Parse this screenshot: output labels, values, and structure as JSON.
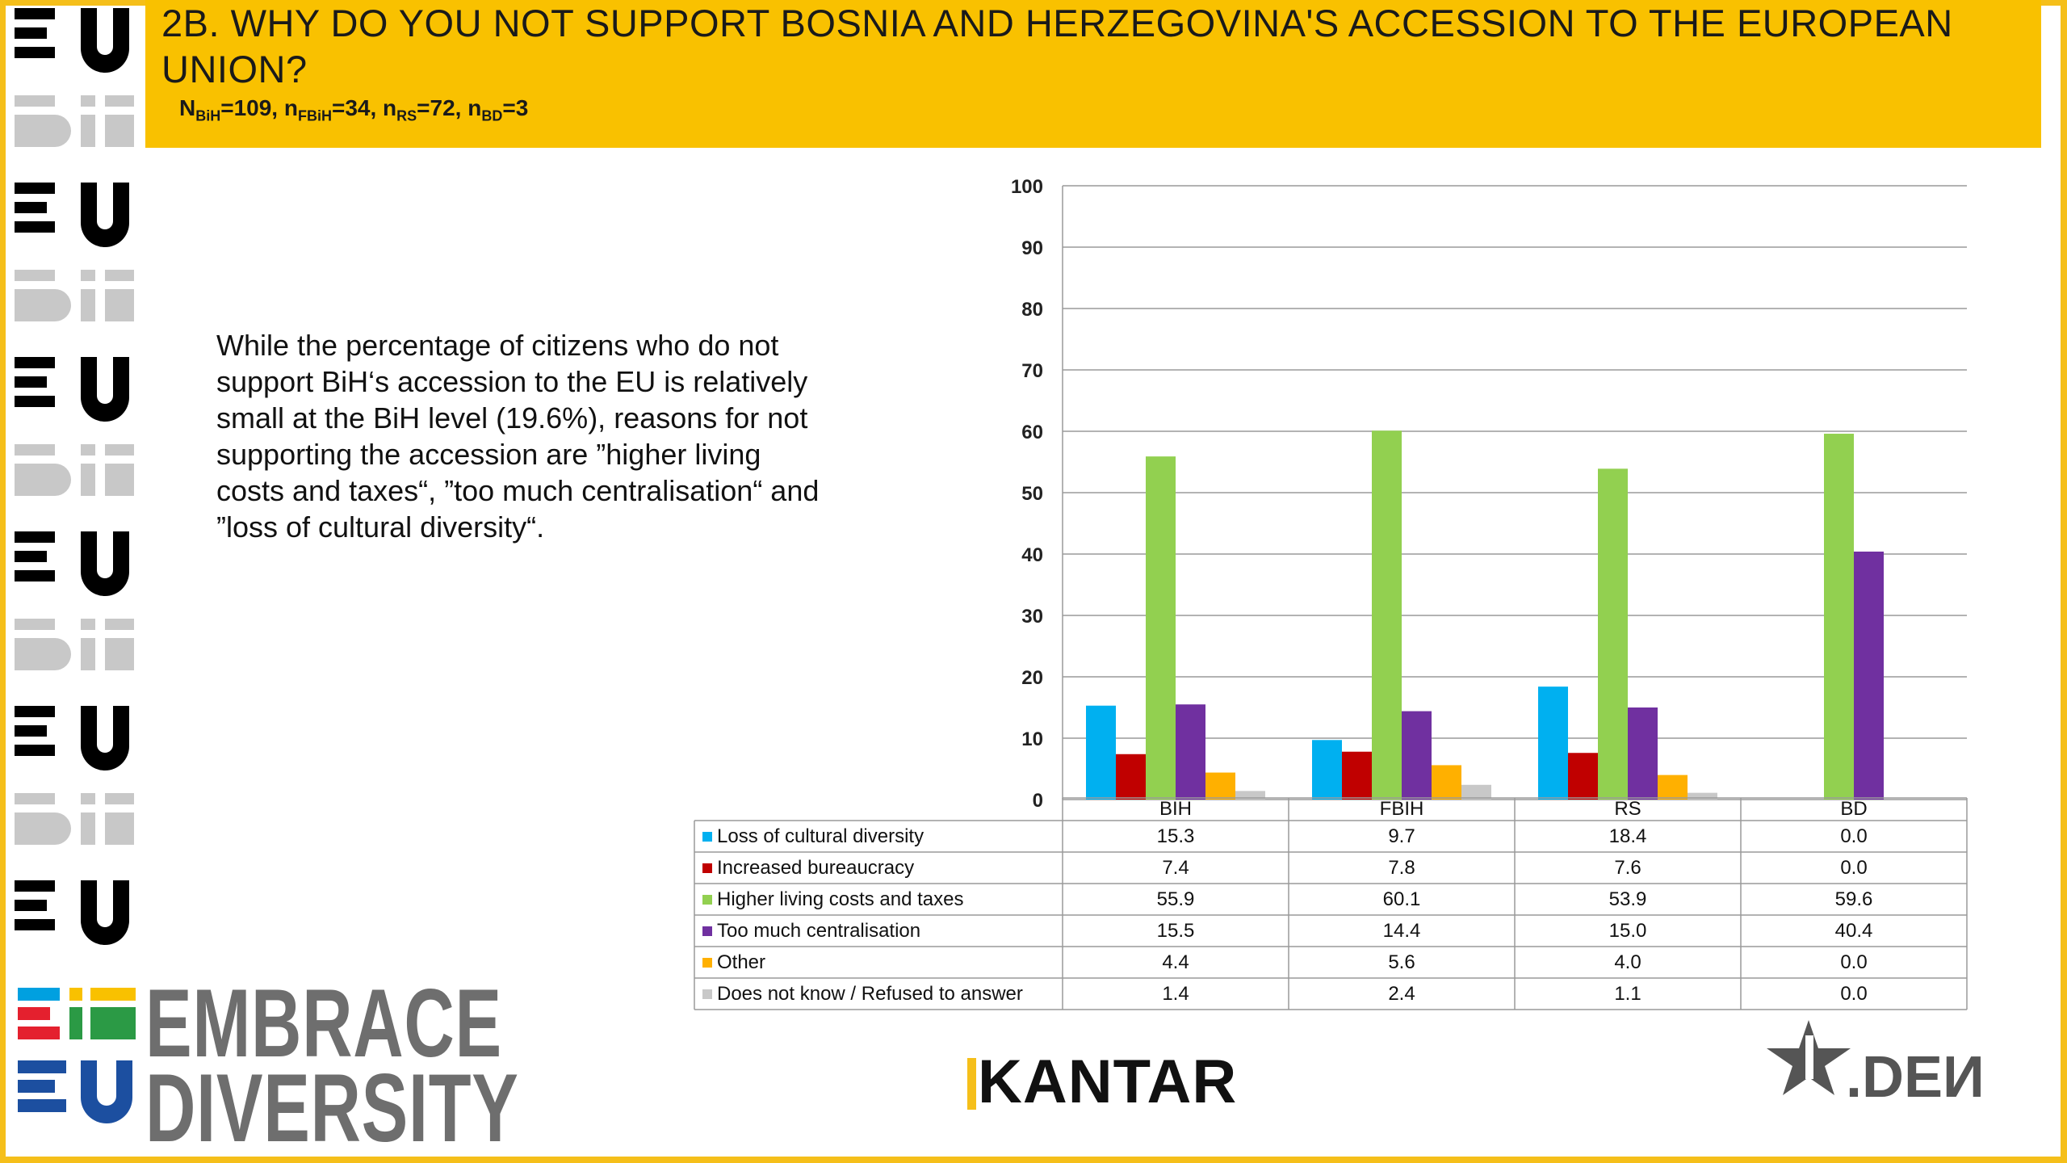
{
  "title": "2B. WHY DO YOU NOT SUPPORT BOSNIA AND HERZEGOVINA'S ACCESSION TO THE EUROPEAN UNION?",
  "sample": {
    "n_bih_label": "N",
    "n_bih_sub": "BiH",
    "n_bih_value": "=109, ",
    "n_fbih_label": "n",
    "n_fbih_sub": "FBiH",
    "n_fbih_value": "=34, ",
    "n_rs_label": "n",
    "n_rs_sub": "RS",
    "n_rs_value": "=72, ",
    "n_bd_label": "n",
    "n_bd_sub": "BD",
    "n_bd_value": "=3"
  },
  "commentary": "While the percentage of citizens who do not support BiH‘s accession to the EU is relatively small at the BiH level (19.6%), reasons for not supporting the accession are ”higher living costs and taxes“, ”too much centralisation“ and ”loss of cultural diversity“.",
  "logos": {
    "embrace_line1": "EMBRACE",
    "embrace_line2": "DIVERSITY",
    "kantar": "KANTAR",
    "den": "DEN"
  },
  "colors": {
    "banner": "#f9c100",
    "frame": "#f5bf1a",
    "logo_gray": "#6e6e6e"
  },
  "chart_data": {
    "type": "bar",
    "categories": [
      "BIH",
      "FBIH",
      "RS",
      "BD"
    ],
    "ylim": [
      0,
      100
    ],
    "yticks": [
      0,
      10,
      20,
      30,
      40,
      50,
      60,
      70,
      80,
      90,
      100
    ],
    "grid": true,
    "legend_position": "data table below chart",
    "series": [
      {
        "name": "Loss of cultural diversity",
        "color": "#00b0f0",
        "values": [
          15.3,
          9.7,
          18.4,
          0.0
        ],
        "labels": [
          "15.3",
          "9.7",
          "18.4",
          "0.0"
        ]
      },
      {
        "name": "Increased bureaucracy",
        "color": "#c00000",
        "values": [
          7.4,
          7.8,
          7.6,
          0.0
        ],
        "labels": [
          "7.4",
          "7.8",
          "7.6",
          "0.0"
        ]
      },
      {
        "name": "Higher living costs and taxes",
        "color": "#92d050",
        "values": [
          55.9,
          60.1,
          53.9,
          59.6
        ],
        "labels": [
          "55.9",
          "60.1",
          "53.9",
          "59.6"
        ]
      },
      {
        "name": "Too much centralisation",
        "color": "#7030a0",
        "values": [
          15.5,
          14.4,
          15.0,
          40.4
        ],
        "labels": [
          "15.5",
          "14.4",
          "15.0",
          "40.4"
        ]
      },
      {
        "name": "Other",
        "color": "#ffb000",
        "values": [
          4.4,
          5.6,
          4.0,
          0.0
        ],
        "labels": [
          "4.4",
          "5.6",
          "4.0",
          "0.0"
        ]
      },
      {
        "name": "Does not know / Refused to answer",
        "color": "#c8c8c8",
        "values": [
          1.4,
          2.4,
          1.1,
          0.0
        ],
        "labels": [
          "1.4",
          "2.4",
          "1.1",
          "0.0"
        ]
      }
    ]
  }
}
